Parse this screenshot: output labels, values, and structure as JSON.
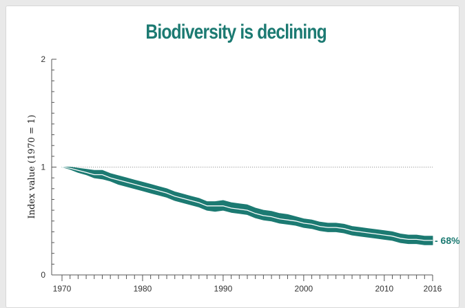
{
  "colors": {
    "teal": "#1c7a72",
    "axis": "#555555",
    "reference": "#9a9a9a"
  },
  "chart_data": {
    "type": "area",
    "title": "Biodiversity is declining",
    "xlabel": "",
    "ylabel": "Index value (1970 = 1)",
    "xlim": [
      1970,
      2016
    ],
    "ylim": [
      0,
      2
    ],
    "x_ticks": [
      "1970",
      "1980",
      "1990",
      "2000",
      "2010",
      "2016"
    ],
    "y_ticks": [
      "0",
      "1",
      "2"
    ],
    "reference_line": 1,
    "annotation": "- 68%",
    "x": [
      1970,
      1971,
      1972,
      1973,
      1974,
      1975,
      1976,
      1977,
      1978,
      1979,
      1980,
      1981,
      1982,
      1983,
      1984,
      1985,
      1986,
      1987,
      1988,
      1989,
      1990,
      1991,
      1992,
      1993,
      1994,
      1995,
      1996,
      1997,
      1998,
      1999,
      2000,
      2001,
      2002,
      2003,
      2004,
      2005,
      2006,
      2007,
      2008,
      2009,
      2010,
      2011,
      2012,
      2013,
      2014,
      2015,
      2016
    ],
    "values": [
      1.0,
      0.99,
      0.97,
      0.95,
      0.93,
      0.93,
      0.9,
      0.88,
      0.86,
      0.84,
      0.82,
      0.8,
      0.78,
      0.76,
      0.73,
      0.71,
      0.69,
      0.67,
      0.64,
      0.64,
      0.64,
      0.62,
      0.61,
      0.6,
      0.57,
      0.55,
      0.54,
      0.52,
      0.51,
      0.5,
      0.48,
      0.47,
      0.45,
      0.44,
      0.44,
      0.43,
      0.41,
      0.4,
      0.39,
      0.38,
      0.37,
      0.36,
      0.34,
      0.33,
      0.33,
      0.32,
      0.32
    ],
    "lower": [
      1.0,
      0.98,
      0.95,
      0.93,
      0.9,
      0.89,
      0.87,
      0.84,
      0.82,
      0.8,
      0.78,
      0.76,
      0.74,
      0.72,
      0.69,
      0.67,
      0.65,
      0.63,
      0.6,
      0.59,
      0.6,
      0.58,
      0.57,
      0.56,
      0.53,
      0.51,
      0.5,
      0.48,
      0.47,
      0.46,
      0.44,
      0.43,
      0.41,
      0.4,
      0.4,
      0.39,
      0.37,
      0.36,
      0.35,
      0.34,
      0.33,
      0.32,
      0.3,
      0.29,
      0.29,
      0.28,
      0.28
    ],
    "upper": [
      1.0,
      1.0,
      0.99,
      0.98,
      0.97,
      0.97,
      0.94,
      0.92,
      0.9,
      0.88,
      0.86,
      0.84,
      0.82,
      0.8,
      0.77,
      0.75,
      0.73,
      0.71,
      0.68,
      0.68,
      0.69,
      0.67,
      0.66,
      0.65,
      0.62,
      0.6,
      0.59,
      0.57,
      0.56,
      0.54,
      0.52,
      0.51,
      0.49,
      0.48,
      0.48,
      0.47,
      0.45,
      0.44,
      0.43,
      0.42,
      0.41,
      0.4,
      0.38,
      0.37,
      0.37,
      0.36,
      0.36
    ]
  }
}
